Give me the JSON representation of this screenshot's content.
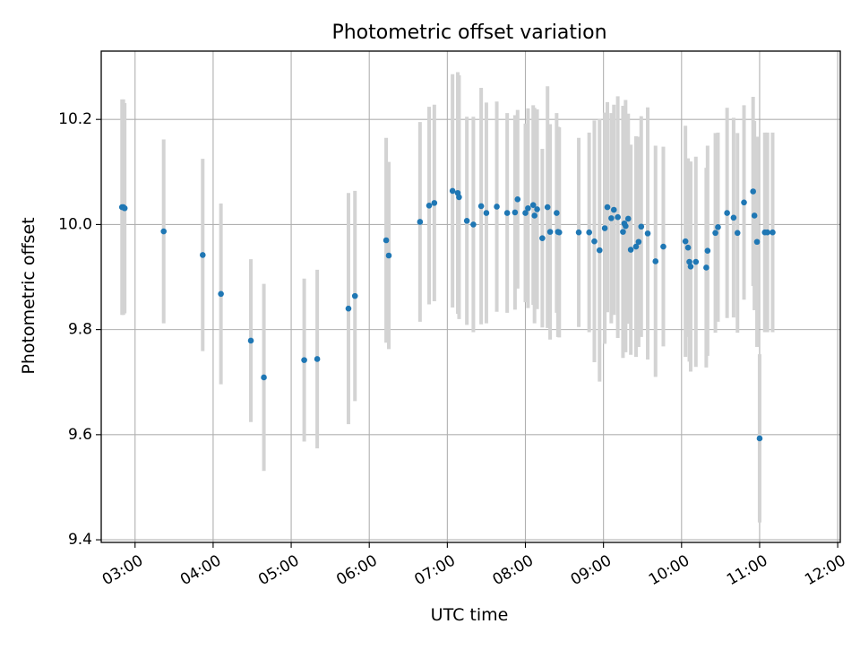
{
  "chart_data": {
    "type": "scatter",
    "title": "Photometric offset variation",
    "xlabel": "UTC time",
    "ylabel": "Photometric offset",
    "xlim": [
      "02:34",
      "12:02"
    ],
    "ylim": [
      9.395,
      10.33
    ],
    "grid": true,
    "x_ticks": [
      "03:00",
      "04:00",
      "05:00",
      "06:00",
      "07:00",
      "08:00",
      "09:00",
      "10:00",
      "11:00",
      "12:00"
    ],
    "y_ticks": [
      9.4,
      9.6,
      9.8,
      10.0,
      10.2
    ],
    "y_tick_labels": [
      "9.4",
      "9.6",
      "9.8",
      "10.0",
      "10.2"
    ],
    "colors": {
      "marker": "#1f77b4",
      "errorbar": "#d3d3d3",
      "grid": "#b0b0b0",
      "axes": "#000000"
    },
    "series": [
      {
        "x": [
          "02:50",
          "02:51",
          "02:52",
          "03:22",
          "03:52",
          "04:06",
          "04:29",
          "04:39",
          "05:10",
          "05:20",
          "05:44",
          "05:49",
          "06:13",
          "06:15",
          "06:39",
          "06:46",
          "06:50",
          "07:04",
          "07:08",
          "07:09",
          "07:15",
          "07:20",
          "07:26",
          "07:30",
          "07:38",
          "07:46",
          "07:52",
          "07:54",
          "08:00",
          "08:02",
          "08:06",
          "08:07",
          "08:09",
          "08:13",
          "08:17",
          "08:19",
          "08:24",
          "08:25",
          "08:26",
          "08:41",
          "08:49",
          "08:53",
          "08:57",
          "09:01",
          "09:03",
          "09:06",
          "09:08",
          "09:11",
          "09:15",
          "09:16",
          "09:17",
          "09:19",
          "09:21",
          "09:25",
          "09:27",
          "09:29",
          "09:34",
          "09:40",
          "09:46",
          "10:03",
          "10:05",
          "10:06",
          "10:07",
          "10:11",
          "10:19",
          "10:20",
          "10:26",
          "10:28",
          "10:35",
          "10:40",
          "10:43",
          "10:48",
          "10:55",
          "10:56",
          "10:58",
          "11:00",
          "11:04",
          "11:06",
          "11:10"
        ],
        "y": [
          10.033,
          10.033,
          10.031,
          9.987,
          9.942,
          9.868,
          9.779,
          9.709,
          9.742,
          9.744,
          9.84,
          9.864,
          9.97,
          9.941,
          10.005,
          10.036,
          10.041,
          10.064,
          10.06,
          10.052,
          10.007,
          10.0,
          10.035,
          10.022,
          10.034,
          10.022,
          10.023,
          10.048,
          10.022,
          10.031,
          10.037,
          10.017,
          10.029,
          9.974,
          10.033,
          9.986,
          10.022,
          9.986,
          9.985,
          9.985,
          9.985,
          9.968,
          9.951,
          9.993,
          10.033,
          10.012,
          10.028,
          10.014,
          9.986,
          10.002,
          9.997,
          10.011,
          9.952,
          9.958,
          9.967,
          9.996,
          9.983,
          9.93,
          9.958,
          9.968,
          9.956,
          9.929,
          9.92,
          9.929,
          9.918,
          9.95,
          9.984,
          9.995,
          10.022,
          10.013,
          9.984,
          10.042,
          10.063,
          10.017,
          9.967,
          9.593,
          9.985,
          9.985,
          9.985
        ],
        "yerr": [
          0.205,
          0.205,
          0.2,
          0.175,
          0.183,
          0.172,
          0.155,
          0.178,
          0.155,
          0.17,
          0.22,
          0.2,
          0.195,
          0.178,
          0.19,
          0.188,
          0.187,
          0.222,
          0.23,
          0.232,
          0.198,
          0.205,
          0.225,
          0.21,
          0.2,
          0.19,
          0.185,
          0.17,
          0.17,
          0.19,
          0.19,
          0.205,
          0.19,
          0.17,
          0.23,
          0.205,
          0.19,
          0.2,
          0.2,
          0.18,
          0.19,
          0.23,
          0.25,
          0.22,
          0.2,
          0.2,
          0.2,
          0.23,
          0.24,
          0.22,
          0.24,
          0.2,
          0.2,
          0.21,
          0.2,
          0.21,
          0.24,
          0.22,
          0.19,
          0.22,
          0.17,
          0.19,
          0.2,
          0.2,
          0.19,
          0.2,
          0.19,
          0.18,
          0.2,
          0.19,
          0.19,
          0.185,
          0.18,
          0.18,
          0.2,
          0.16,
          0.19,
          0.19,
          0.19
        ]
      }
    ]
  }
}
